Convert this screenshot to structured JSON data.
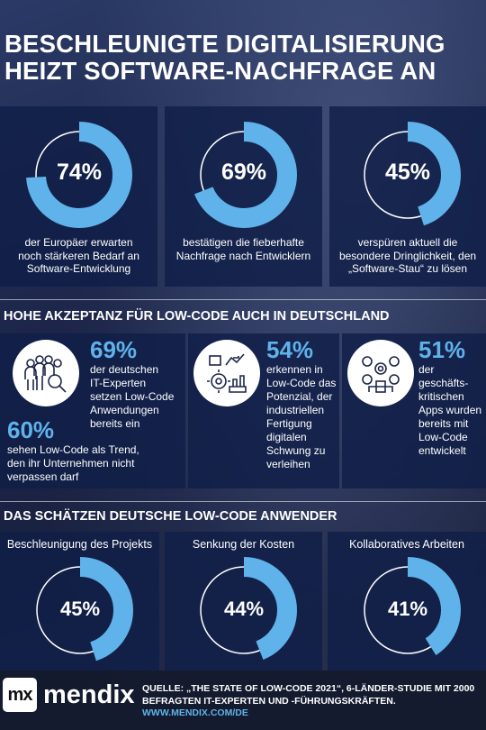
{
  "header": {
    "title_line1": "BESCHLEUNIGTE DIGITALISIERUNG",
    "title_line2": "HEIZT SOFTWARE-NACHFRAGE AN"
  },
  "top_stats": [
    {
      "percent_label": "74%",
      "value": 74,
      "line1": "der Europäer erwarten",
      "line2": "noch stärkeren Bedarf an",
      "line3": "Software-Entwicklung"
    },
    {
      "percent_label": "69%",
      "value": 69,
      "line1": "bestätigen die fieberhafte",
      "line2": "Nachfrage nach Entwicklern",
      "line3": ""
    },
    {
      "percent_label": "45%",
      "value": 45,
      "line1": "verspüren aktuell die",
      "line2": "besondere Dringlichkeit, den",
      "line3": "„Software-Stau“ zu lösen"
    }
  ],
  "section2": {
    "title": "HOHE AKZEPTANZ FÜR LOW-CODE AUCH IN DEUTSCHLAND",
    "stats": [
      {
        "pct": "69%",
        "lines": [
          "der deutschen",
          "IT-Experten",
          "setzen Low-Code",
          "Anwendungen",
          "bereits ein"
        ],
        "icon": "people-search-icon"
      },
      {
        "pct": "54%",
        "lines": [
          "erkennen in",
          "Low-Code das",
          "Potenzial, der",
          "industriellen",
          "Fertigung",
          "digitalen",
          "Schwung zu",
          "verleihen"
        ],
        "icon": "factory-gear-icon"
      },
      {
        "pct": "51%",
        "lines": [
          "der geschäfts-",
          "kritischen",
          "Apps wurden",
          "bereits mit",
          "Low-Code",
          "entwickelt"
        ],
        "icon": "business-apps-icon"
      }
    ],
    "extra": {
      "pct": "60%",
      "lines": [
        "sehen Low-Code als Trend,",
        "den ihr Unternehmen nicht",
        "verpassen darf"
      ]
    }
  },
  "section3": {
    "title": "DAS SCHÄTZEN DEUTSCHE LOW-CODE ANWENDER",
    "stats": [
      {
        "label": "Beschleunigung des Projekts",
        "percent_label": "45%",
        "value": 45
      },
      {
        "label": "Senkung der Kosten",
        "percent_label": "44%",
        "value": 44
      },
      {
        "label": "Kollaboratives Arbeiten",
        "percent_label": "41%",
        "value": 41
      }
    ]
  },
  "footer": {
    "logo_mark": "mx",
    "logo_text": "mendix",
    "source_line1": "QUELLE: „THE STATE OF LOW-CODE 2021“, 6-LÄNDER-STUDIE MIT 2000",
    "source_line2": "BEFRAGTEN IT-EXPERTEN UND -FÜHRUNGSKRÄFTEN.",
    "source_url": "WWW.MENDIX.COM/DE"
  },
  "colors": {
    "accent": "#5fb3ea",
    "ring_track": "#ffffff",
    "panel": "#101e48"
  }
}
